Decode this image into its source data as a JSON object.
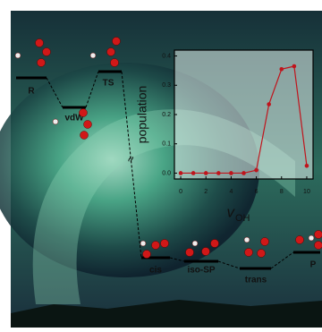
{
  "chart_data": {
    "type": "line",
    "y_label": "population",
    "x_label": "v",
    "x_label_sub": "OH",
    "x": [
      0,
      1,
      2,
      3,
      4,
      5,
      6,
      7,
      8,
      9,
      10
    ],
    "series": [
      {
        "color": "#c0141c",
        "values": [
          0,
          0,
          0,
          0,
          0,
          0,
          0.01,
          0.235,
          0.355,
          0.365,
          0.025
        ]
      }
    ],
    "xlim": [
      -0.5,
      10.5
    ],
    "xticks": [
      0,
      2,
      4,
      6,
      8,
      10
    ],
    "ylim": [
      -0.02,
      0.42
    ],
    "yticks": [
      {
        "value": 0,
        "label": "0.0"
      },
      0.1,
      0.2,
      0.3,
      0.4
    ]
  },
  "diagram": {
    "levels": [
      "R",
      "vdW",
      "TS",
      "cis",
      "iso-SP",
      "trans",
      "P"
    ],
    "break_mark": "≈"
  }
}
